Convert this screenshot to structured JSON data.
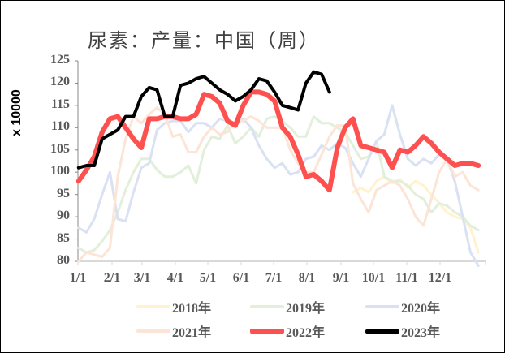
{
  "chart_data": {
    "type": "line",
    "title": "尿素：产量：中国（周）",
    "ylabel": "x 10000",
    "xlabel": "",
    "ylim": [
      80,
      125
    ],
    "y_ticks": [
      "80",
      "85",
      "90",
      "95",
      "100",
      "105",
      "110",
      "115",
      "120",
      "125"
    ],
    "x_ticks": [
      "1/1",
      "2/1",
      "3/1",
      "4/1",
      "5/1",
      "6/1",
      "7/1",
      "8/1",
      "9/1",
      "10/1",
      "11/1",
      "12/1"
    ],
    "x_unit": "week of year (1-52)",
    "grid": false,
    "legend_position": "bottom",
    "series": [
      {
        "name": "2018年",
        "color": "#FFF2CC",
        "width": 3,
        "values": [
          null,
          null,
          null,
          null,
          null,
          null,
          null,
          null,
          null,
          null,
          null,
          null,
          null,
          null,
          null,
          null,
          null,
          null,
          null,
          null,
          null,
          null,
          null,
          null,
          null,
          null,
          null,
          null,
          null,
          null,
          null,
          null,
          null,
          null,
          null,
          95.5,
          96.5,
          95.5,
          98,
          99,
          97.5,
          98.5,
          96.5,
          98,
          97,
          95,
          93,
          91,
          90,
          89.5,
          87.5,
          82
        ]
      },
      {
        "name": "2019年",
        "color": "#E2EFDA",
        "width": 3,
        "values": [
          83,
          82,
          82.5,
          84.5,
          87,
          91,
          96,
          100,
          103,
          103,
          100.5,
          99,
          99,
          100,
          101.5,
          97.5,
          105,
          108,
          107.5,
          110.5,
          106.5,
          108,
          110,
          108,
          112,
          112.5,
          111.5,
          110,
          108,
          108,
          112.5,
          111,
          111,
          110,
          109,
          106,
          103,
          103.5,
          107,
          99,
          98,
          98,
          97,
          95,
          94,
          91,
          93,
          92.5,
          91,
          90,
          88,
          87
        ]
      },
      {
        "name": "2020年",
        "color": "#D9E1F2",
        "width": 3,
        "values": [
          87.5,
          86.5,
          89.5,
          95,
          100,
          89.5,
          89,
          95.5,
          101,
          102,
          109.5,
          111,
          111.5,
          111.5,
          109,
          111,
          111,
          110,
          112,
          111.5,
          110.5,
          112,
          110,
          106,
          103,
          101,
          102,
          99.5,
          100,
          103,
          103.5,
          106,
          105,
          106.5,
          105.5,
          102,
          99,
          103,
          107,
          108.5,
          115,
          108.5,
          103,
          101.5,
          103,
          102,
          104,
          103,
          98,
          90,
          82,
          79
        ]
      },
      {
        "name": "2021年",
        "color": "#FCE4D6",
        "width": 3,
        "values": [
          80,
          82,
          81.5,
          81,
          83,
          99,
          107.5,
          112.5,
          111,
          113,
          114.5,
          113,
          108,
          108.5,
          104.5,
          104.5,
          108,
          110,
          108.5,
          109,
          111.5,
          111.5,
          112.5,
          111.5,
          110,
          110,
          110,
          105,
          102,
          100,
          100,
          104,
          108,
          110.5,
          110.5,
          97.5,
          94,
          91,
          96,
          97,
          98,
          97,
          94,
          90,
          88,
          94,
          100,
          103,
          99,
          100,
          97,
          96
        ]
      },
      {
        "name": "2022年",
        "color": "#FF5050",
        "width": 6,
        "values": [
          98,
          100.5,
          103.5,
          109,
          112,
          112.5,
          110,
          107.5,
          105.5,
          112,
          112,
          112.5,
          112.5,
          112,
          112,
          113,
          117.5,
          117,
          115.5,
          111.5,
          110.5,
          115,
          118,
          118,
          117.5,
          116,
          110,
          108,
          104,
          99,
          99.5,
          98,
          96,
          105.5,
          110,
          112,
          106,
          105.5,
          105,
          104.5,
          101,
          105,
          104.5,
          106,
          108,
          106.5,
          104.5,
          103,
          101.5,
          102,
          102,
          101.5
        ]
      },
      {
        "name": "2023年",
        "color": "#000000",
        "width": 4,
        "values": [
          101,
          101.5,
          101.5,
          107.5,
          108.5,
          109.5,
          112.5,
          112.5,
          117,
          119,
          118.5,
          112.5,
          112.5,
          119.5,
          120,
          121,
          121.5,
          120,
          118.5,
          117.5,
          116,
          117,
          118.5,
          121,
          120.5,
          118,
          115,
          114.5,
          114,
          120,
          122.5,
          122,
          118,
          null,
          null,
          null,
          null,
          null,
          null,
          null,
          null,
          null,
          null,
          null,
          null,
          null,
          null,
          null,
          null,
          null,
          null,
          null
        ]
      }
    ]
  },
  "title": "尿素：产量：中国（周）",
  "y_axis_unit": "x 10000",
  "legend": [
    "2018年",
    "2019年",
    "2020年",
    "2021年",
    "2022年",
    "2023年"
  ]
}
